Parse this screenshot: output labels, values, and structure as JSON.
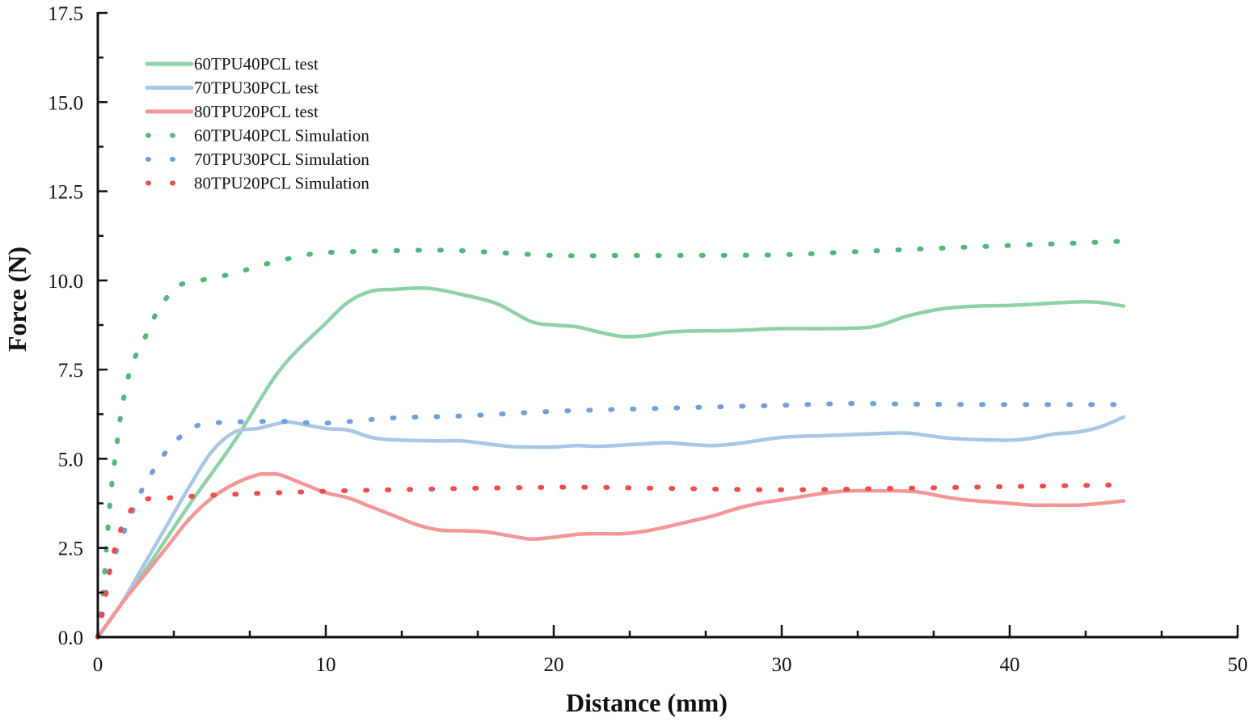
{
  "chart_data": {
    "type": "line",
    "title": "",
    "xlabel": "Distance (mm)",
    "ylabel": "Force (N)",
    "xlim": [
      0,
      50
    ],
    "ylim": [
      0,
      17.5
    ],
    "xticks": [
      0,
      10,
      20,
      30,
      40,
      50
    ],
    "xtick_labels": [
      "0",
      "10",
      "20",
      "30",
      "40",
      "50"
    ],
    "yticks": [
      0,
      2.5,
      5,
      7.5,
      10,
      12.5,
      15,
      17.5
    ],
    "ytick_labels": [
      "0.0",
      "2.5",
      "5.0",
      "7.5",
      "10.0",
      "12.5",
      "15.0",
      "17.5"
    ],
    "grid": false,
    "legend_position": "top-left",
    "series": [
      {
        "name": "60TPU40PCL test",
        "style": "solid",
        "color": "#8fd1a6",
        "x": [
          0,
          2,
          4,
          6,
          8,
          10,
          11,
          12,
          13,
          14.5,
          16,
          17.5,
          19,
          20,
          21,
          22,
          23,
          24,
          25,
          26,
          28,
          30,
          32,
          34,
          35.5,
          37,
          38.5,
          40,
          41.5,
          43,
          44,
          45
        ],
        "y": [
          0,
          1.8,
          3.7,
          5.5,
          7.5,
          8.8,
          9.4,
          9.7,
          9.75,
          9.78,
          9.6,
          9.35,
          8.85,
          8.75,
          8.7,
          8.55,
          8.43,
          8.45,
          8.55,
          8.58,
          8.6,
          8.65,
          8.65,
          8.7,
          9.0,
          9.2,
          9.28,
          9.3,
          9.35,
          9.4,
          9.38,
          9.28
        ]
      },
      {
        "name": "70TPU30PCL test",
        "style": "solid",
        "color": "#a9c6e6",
        "x": [
          0,
          1,
          2,
          3,
          4,
          5,
          6,
          7,
          8,
          8.5,
          10,
          11,
          12,
          13,
          15,
          16,
          18,
          19,
          20,
          21,
          22,
          24,
          25,
          26,
          27,
          28,
          30,
          32,
          34,
          35.5,
          37,
          38,
          40,
          41,
          42,
          43,
          44,
          45
        ],
        "y": [
          0,
          0.9,
          2.0,
          3.1,
          4.2,
          5.2,
          5.75,
          5.85,
          6.0,
          6.02,
          5.85,
          5.8,
          5.6,
          5.53,
          5.5,
          5.5,
          5.35,
          5.33,
          5.33,
          5.37,
          5.35,
          5.42,
          5.45,
          5.4,
          5.37,
          5.42,
          5.6,
          5.65,
          5.7,
          5.72,
          5.6,
          5.55,
          5.52,
          5.58,
          5.7,
          5.75,
          5.9,
          6.17
        ]
      },
      {
        "name": "80TPU20PCL test",
        "style": "solid",
        "color": "#f29696",
        "x": [
          0,
          1,
          2,
          3,
          4,
          5,
          6,
          7,
          7.5,
          8,
          9,
          10,
          11,
          12,
          13,
          14,
          15,
          16,
          17,
          18,
          19,
          20,
          21,
          22,
          23,
          24,
          25,
          26,
          27,
          28,
          29,
          30,
          31,
          32,
          33,
          34,
          35,
          36,
          37,
          38,
          39,
          40,
          41,
          42,
          43,
          44,
          45
        ],
        "y": [
          0,
          0.9,
          1.7,
          2.5,
          3.3,
          3.9,
          4.3,
          4.55,
          4.57,
          4.55,
          4.3,
          4.05,
          3.9,
          3.65,
          3.4,
          3.15,
          3.0,
          2.98,
          2.95,
          2.85,
          2.75,
          2.8,
          2.88,
          2.9,
          2.9,
          2.97,
          3.1,
          3.25,
          3.4,
          3.6,
          3.75,
          3.85,
          3.95,
          4.05,
          4.1,
          4.1,
          4.1,
          4.07,
          3.95,
          3.85,
          3.8,
          3.75,
          3.7,
          3.7,
          3.7,
          3.75,
          3.82
        ]
      },
      {
        "name": "60TPU40PCL Simulation",
        "style": "dotted",
        "color": "#4fb878",
        "x": [
          0,
          0.2,
          0.4,
          0.6,
          0.8,
          1,
          1.3,
          1.6,
          2,
          2.5,
          3,
          3.5,
          4.5,
          6,
          7,
          8,
          9,
          10,
          12,
          15,
          17,
          20,
          23,
          26,
          30,
          33,
          36,
          40,
          43,
          45
        ],
        "y": [
          0,
          1,
          2.7,
          4.2,
          5.2,
          6.2,
          7.2,
          7.8,
          8.3,
          9.0,
          9.5,
          9.85,
          10.0,
          10.2,
          10.4,
          10.55,
          10.7,
          10.78,
          10.82,
          10.85,
          10.8,
          10.7,
          10.7,
          10.7,
          10.72,
          10.8,
          10.88,
          10.98,
          11.05,
          11.1
        ]
      },
      {
        "name": "70TPU30PCL Simulation",
        "style": "dotted",
        "color": "#6f9fdc",
        "x": [
          0,
          0.5,
          1,
          1.5,
          2,
          3,
          4,
          5,
          8,
          10,
          13,
          16,
          20,
          25,
          30,
          33,
          36,
          40,
          45
        ],
        "y": [
          0,
          1.8,
          2.7,
          3.5,
          4.2,
          5.2,
          5.8,
          6.0,
          6.05,
          6.0,
          6.15,
          6.2,
          6.33,
          6.42,
          6.5,
          6.55,
          6.53,
          6.52,
          6.52
        ]
      },
      {
        "name": "80TPU20PCL Simulation",
        "style": "dotted",
        "color": "#ee4b4b",
        "x": [
          0,
          0.3,
          0.6,
          1,
          1.5,
          2,
          3,
          5,
          8,
          12,
          20,
          25,
          30,
          35,
          40,
          45
        ],
        "y": [
          0,
          1.0,
          2.1,
          3.0,
          3.6,
          3.85,
          3.9,
          3.98,
          4.05,
          4.12,
          4.2,
          4.17,
          4.13,
          4.17,
          4.22,
          4.27
        ]
      }
    ]
  }
}
